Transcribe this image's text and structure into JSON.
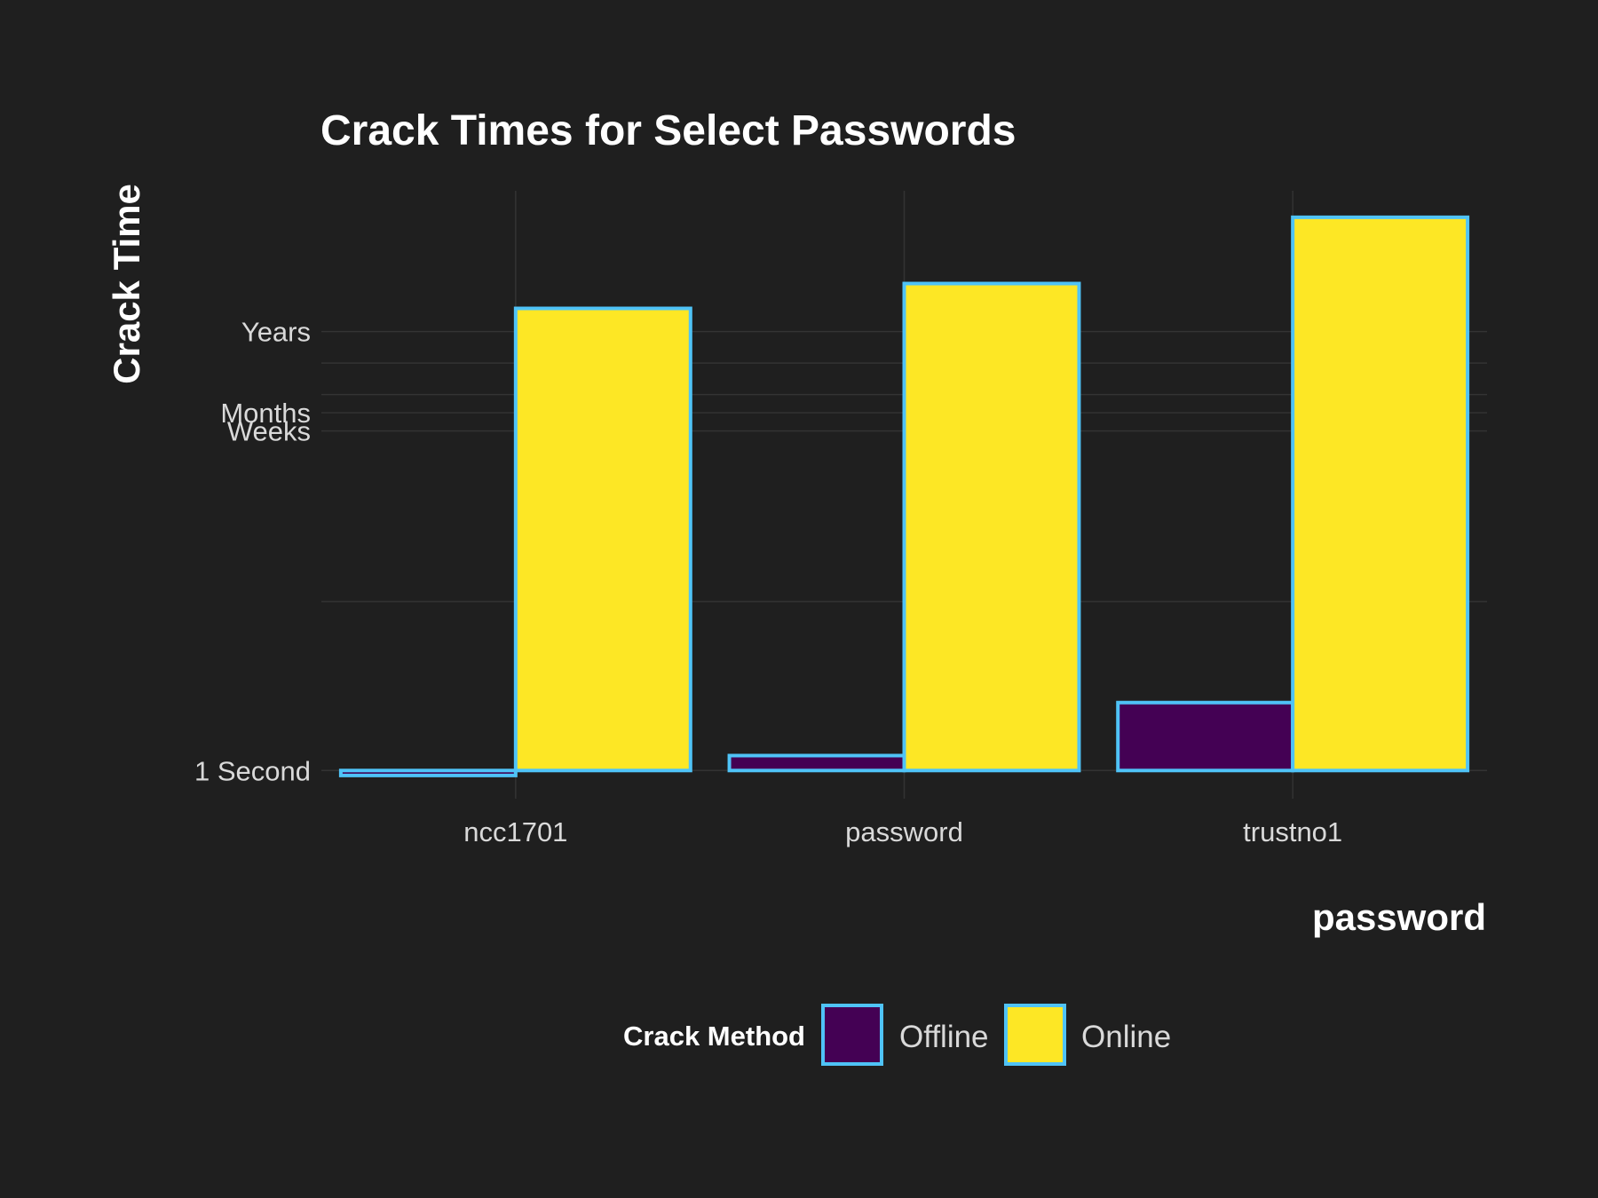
{
  "chart_data": {
    "type": "bar",
    "title": "Crack Times for Select Passwords",
    "xlabel": "password",
    "ylabel": "Crack Time",
    "categories": [
      "ncc1701",
      "password",
      "trustno1"
    ],
    "series": [
      {
        "name": "Offline",
        "values": [
          -0.03,
          0.09,
          0.41
        ],
        "color": "#440154"
      },
      {
        "name": "Online",
        "values": [
          2.79,
          2.94,
          3.34
        ],
        "color": "#fde725"
      }
    ],
    "y_scale": "log10 seconds",
    "y_ticks": [
      {
        "value": 0,
        "label": "1 Second"
      },
      {
        "value": 2.05,
        "label": "Weeks"
      },
      {
        "value": 2.16,
        "label": "Months"
      },
      {
        "value": 2.65,
        "label": "Years"
      }
    ],
    "y_minor_gridlines": [
      1.02,
      2.27,
      2.46
    ],
    "ylim": [
      -0.17,
      3.5
    ],
    "bar_outline_color": "#4fc3f7",
    "grid": true,
    "legend": {
      "title": "Crack Method",
      "position": "bottom",
      "items": [
        "Offline",
        "Online"
      ]
    }
  }
}
